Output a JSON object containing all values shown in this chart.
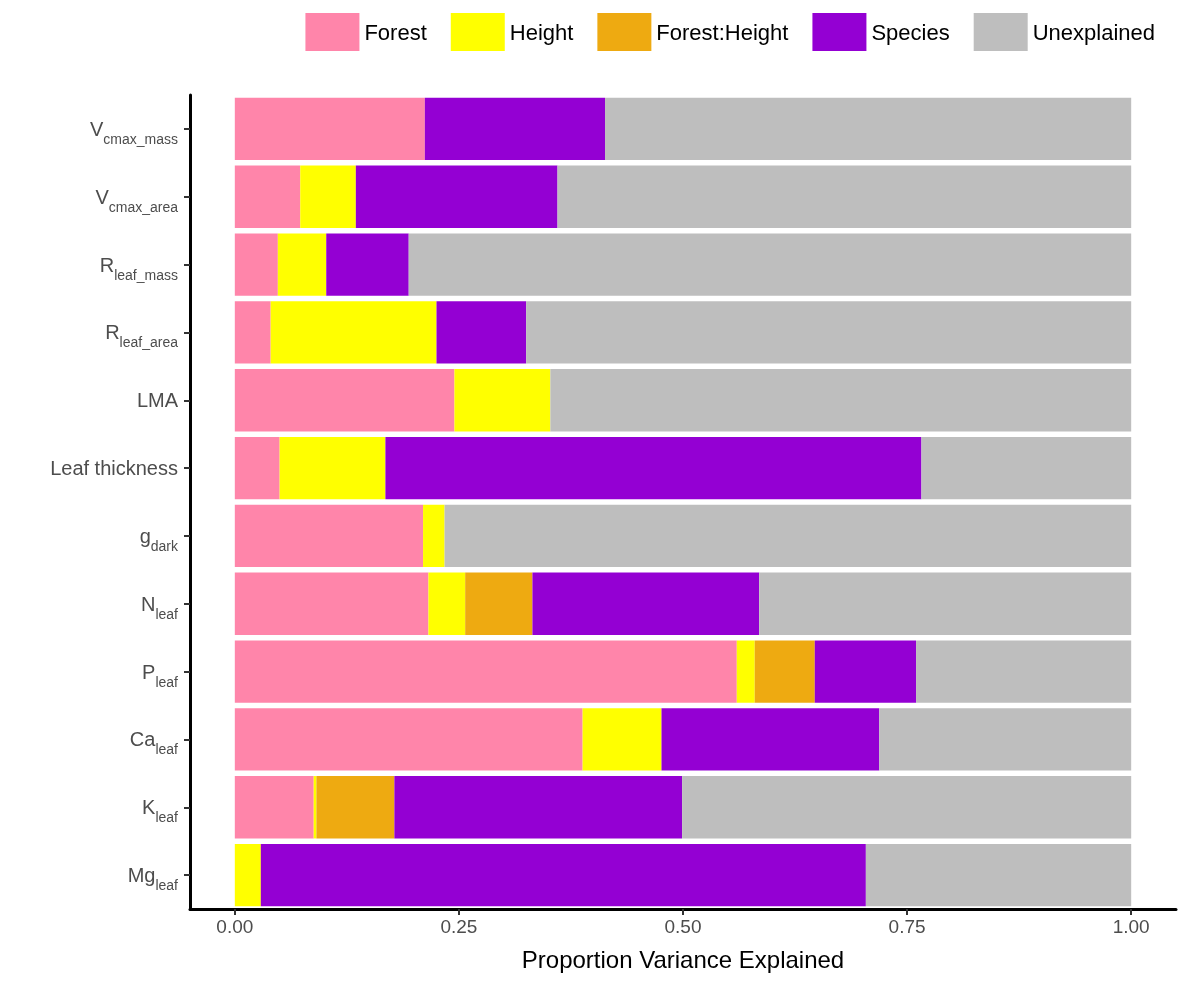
{
  "chart_data": {
    "type": "bar",
    "orientation": "horizontal",
    "stacked": true,
    "xlabel": "Proportion Variance Explained",
    "categories": [
      "V$_{cmax_mass}$",
      "V$_{cmax_area}$",
      "R$_{leaf_mass}$",
      "R$_{leaf_area}$",
      "LMA",
      "Leaf thickness",
      "g$_{dark}$",
      "N$_{leaf}$",
      "P$_{leaf}$",
      "Ca$_{leaf}$",
      "K$_{leaf}$",
      "Mg$_{leaf}$"
    ],
    "series": [
      {
        "name": "Forest",
        "color": "#ff85aa",
        "values": [
          0.212,
          0.073,
          0.048,
          0.04,
          0.245,
          0.05,
          0.21,
          0.216,
          0.56,
          0.388,
          0.088,
          0
        ]
      },
      {
        "name": "Height",
        "color": "#ffff00",
        "values": [
          0,
          0.062,
          0.054,
          0.185,
          0.107,
          0.118,
          0.024,
          0.041,
          0.02,
          0.088,
          0.003,
          0.029
        ]
      },
      {
        "name": "Forest:Height",
        "color": "#eeaa11",
        "values": [
          0,
          0,
          0,
          0,
          0,
          0,
          0,
          0.075,
          0.067,
          0,
          0.087,
          0
        ]
      },
      {
        "name": "Species",
        "color": "#9400d3",
        "values": [
          0.201,
          0.225,
          0.092,
          0.1,
          0,
          0.598,
          0,
          0.253,
          0.113,
          0.243,
          0.321,
          0.675
        ]
      },
      {
        "name": "Unexplained",
        "color": "#bebebe",
        "values": [
          0.587,
          0.64,
          0.806,
          0.675,
          0.648,
          0.234,
          0.766,
          0.415,
          0.24,
          0.281,
          0.501,
          0.296
        ]
      }
    ],
    "xlim": [
      -0.05,
      1.05
    ],
    "xticks": [
      {
        "value": 0,
        "label": "0.00"
      },
      {
        "value": 0.25,
        "label": "0.25"
      },
      {
        "value": 0.5,
        "label": "0.50"
      },
      {
        "value": 0.75,
        "label": "0.75"
      },
      {
        "value": 1,
        "label": "1.00"
      }
    ],
    "grid": false,
    "legend": "top right"
  }
}
